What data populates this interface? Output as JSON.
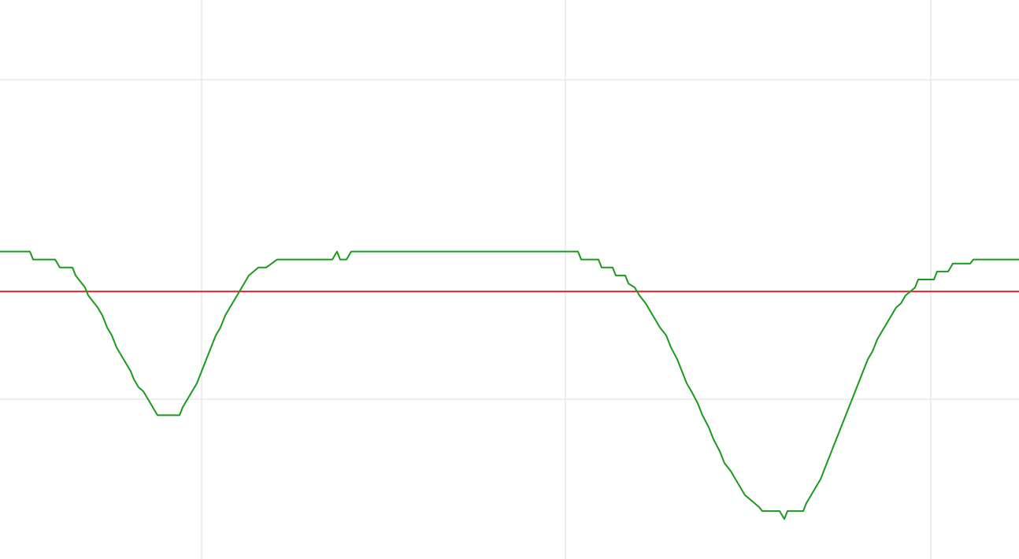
{
  "chart_data": {
    "type": "line",
    "title": "",
    "xlabel": "",
    "ylabel": "",
    "grid": true,
    "legend": "none",
    "xlim": [
      0,
      1294
    ],
    "ylim": [
      0,
      140
    ],
    "x_gridlines": [
      256,
      718,
      1182
    ],
    "y_gridlines": [
      40,
      120
    ],
    "colors": {
      "background": "#ffffff",
      "grid": "#e9e9e9",
      "signal": "#1a9a1a",
      "threshold": "#d62728"
    },
    "series": [
      {
        "role": "signal",
        "x": [
          0,
          38,
          42,
          70,
          76,
          92,
          96,
          100,
          108,
          112,
          120,
          124,
          130,
          136,
          142,
          148,
          154,
          160,
          166,
          170,
          176,
          182,
          188,
          194,
          200,
          228,
          232,
          238,
          244,
          250,
          256,
          262,
          268,
          274,
          280,
          286,
          292,
          298,
          304,
          310,
          316,
          322,
          328,
          338,
          352,
          358,
          422,
          428,
          432,
          440,
          446,
          734,
          738,
          760,
          764,
          778,
          782,
          794,
          798,
          806,
          812,
          820,
          826,
          832,
          838,
          846,
          852,
          860,
          866,
          872,
          878,
          886,
          892,
          900,
          906,
          914,
          920,
          928,
          934,
          940,
          946,
          952,
          958,
          964,
          968,
          990,
          996,
          1000,
          1020,
          1024,
          1030,
          1036,
          1042,
          1048,
          1054,
          1060,
          1066,
          1072,
          1078,
          1084,
          1090,
          1096,
          1102,
          1108,
          1114,
          1120,
          1126,
          1132,
          1138,
          1144,
          1150,
          1156,
          1162,
          1166,
          1172,
          1186,
          1190,
          1204,
          1210,
          1232,
          1236,
          1294
        ],
        "y": [
          77,
          77,
          75,
          75,
          73,
          73,
          71,
          70,
          68,
          66,
          64,
          63,
          61,
          58,
          56,
          53,
          51,
          49,
          47,
          45,
          43,
          42,
          40,
          38,
          36,
          36,
          38,
          40,
          42,
          44,
          47,
          50,
          53,
          56,
          58,
          61,
          63,
          65,
          67,
          69,
          71,
          72,
          73,
          73,
          75,
          75,
          75,
          77,
          75,
          75,
          77,
          77,
          75,
          75,
          73,
          73,
          71,
          71,
          69,
          68,
          66,
          64,
          62,
          60,
          58,
          56,
          53,
          50,
          47,
          44,
          42,
          39,
          36,
          33,
          30,
          27,
          24,
          22,
          20,
          18,
          16,
          15,
          14,
          13,
          12,
          12,
          10,
          12,
          12,
          14,
          16,
          18,
          20,
          23,
          26,
          29,
          32,
          35,
          38,
          41,
          44,
          47,
          50,
          52,
          55,
          57,
          59,
          61,
          63,
          64,
          66,
          67,
          68,
          70,
          70,
          70,
          72,
          72,
          74,
          74,
          75,
          75
        ]
      },
      {
        "role": "threshold",
        "x": [
          0,
          1294
        ],
        "y": [
          67,
          67
        ]
      }
    ]
  }
}
